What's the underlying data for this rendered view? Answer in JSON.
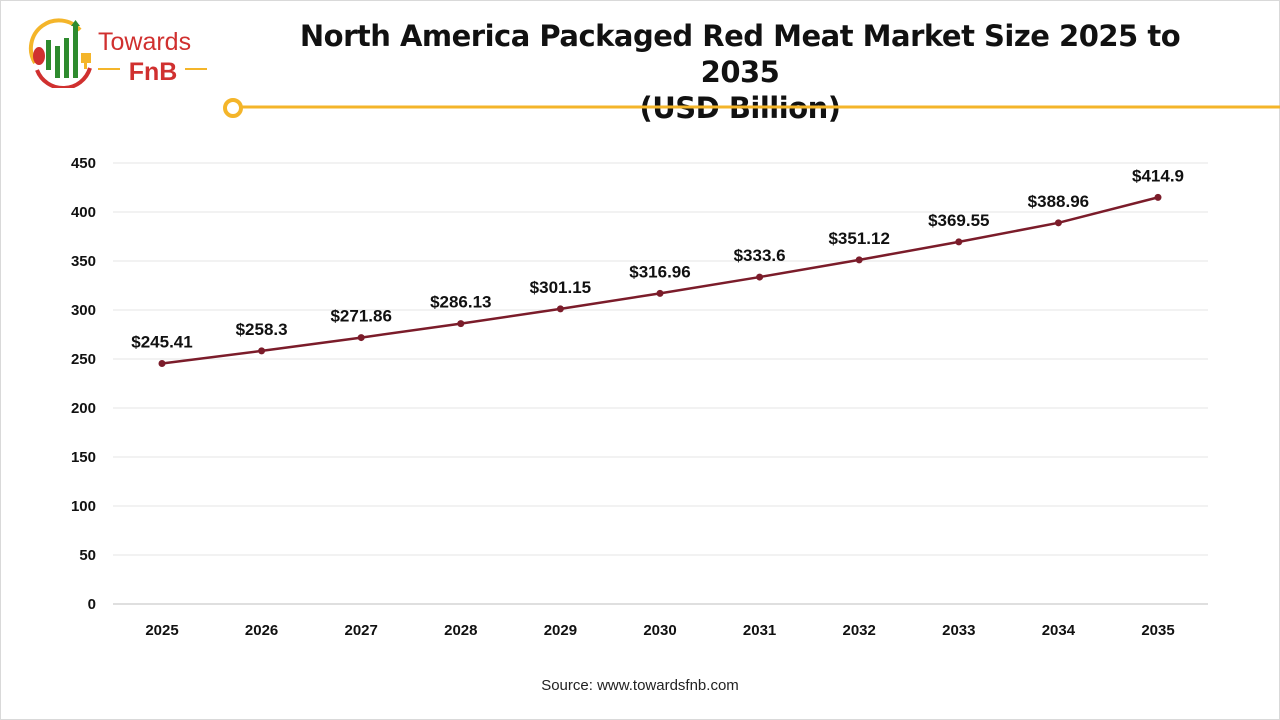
{
  "logo": {
    "line1": "Towards",
    "line2": "FnB"
  },
  "colors": {
    "line": "#7b1c2a",
    "accent": "#f4b52a",
    "brand_red": "#d0302f",
    "brand_green": "#2e8b2e",
    "grid": "#e6e6e6"
  },
  "chart_data": {
    "type": "line",
    "title": "North America Packaged Red Meat Market Size 2025 to 2035",
    "subtitle": "(USD Billion)",
    "categories": [
      "2025",
      "2026",
      "2027",
      "2028",
      "2029",
      "2030",
      "2031",
      "2032",
      "2033",
      "2034",
      "2035"
    ],
    "values": [
      245.41,
      258.3,
      271.86,
      286.13,
      301.15,
      316.96,
      333.6,
      351.12,
      369.55,
      388.96,
      414.9
    ],
    "data_labels": [
      "$245.41",
      "$258.3",
      "$271.86",
      "$286.13",
      "$301.15",
      "$316.96",
      "$333.6",
      "$351.12",
      "$369.55",
      "$388.96",
      "$414.9"
    ],
    "ylim": [
      0,
      450
    ],
    "yticks": [
      0,
      50,
      100,
      150,
      200,
      250,
      300,
      350,
      400,
      450
    ],
    "grid": true,
    "legend": "none"
  },
  "source": "Source: www.towardsfnb.com"
}
